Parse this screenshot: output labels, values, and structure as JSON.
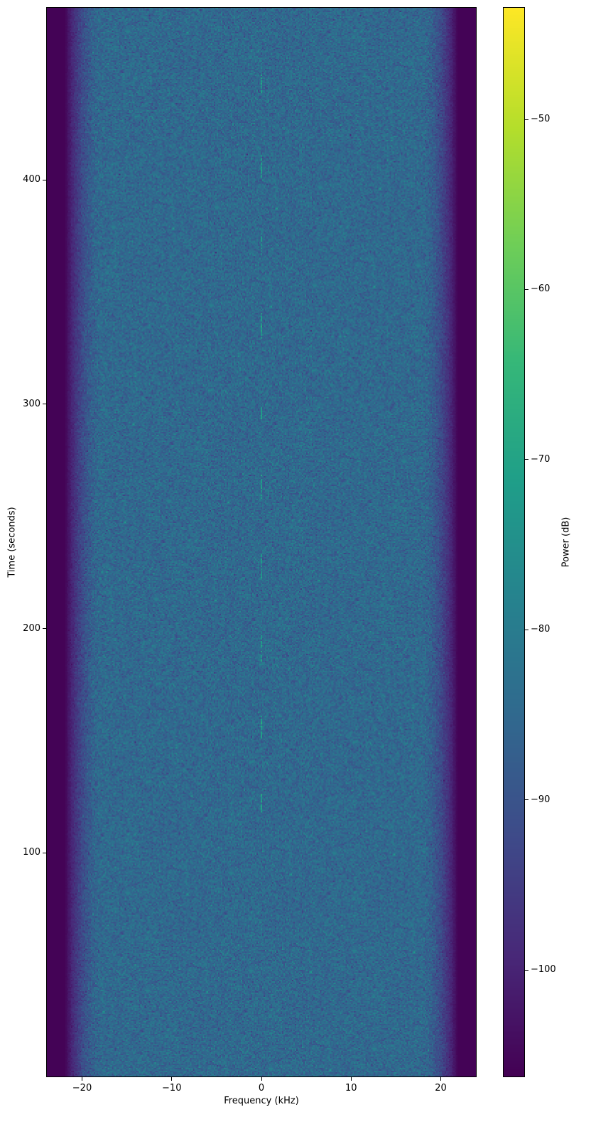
{
  "chart_data": {
    "type": "heatmap",
    "title": "",
    "xlabel": "Frequency (kHz)",
    "ylabel": "Time (seconds)",
    "colorbar_label": "Power (dB)",
    "colormap": "viridis",
    "xlim": [
      -24,
      24
    ],
    "ylim": [
      0,
      477
    ],
    "clim": [
      -106.3,
      -43.4
    ],
    "xticks": [
      -20,
      -10,
      0,
      10,
      20
    ],
    "xtick_labels": [
      "−20",
      "−10",
      "0",
      "10",
      "20"
    ],
    "yticks": [
      100,
      200,
      300,
      400
    ],
    "ytick_labels": [
      "100",
      "200",
      "300",
      "400"
    ],
    "cticks": [
      -50,
      -60,
      -70,
      -80,
      -90,
      -100
    ],
    "ctick_labels": [
      "−50",
      "−60",
      "−70",
      "−80",
      "−90",
      "−100"
    ],
    "noise_floor_db": -85,
    "band_edge_khz": 20,
    "outside_band_db": -106,
    "signal": {
      "frequency_khz": 0,
      "peak_db": -72,
      "bursts_seconds": [
        [
          437,
          448
        ],
        [
          401,
          412
        ],
        [
          366,
          376
        ],
        [
          329,
          341
        ],
        [
          293,
          299
        ],
        [
          258,
          269
        ],
        [
          221,
          234
        ],
        [
          185,
          197
        ],
        [
          151,
          161
        ],
        [
          118,
          126
        ]
      ]
    }
  }
}
